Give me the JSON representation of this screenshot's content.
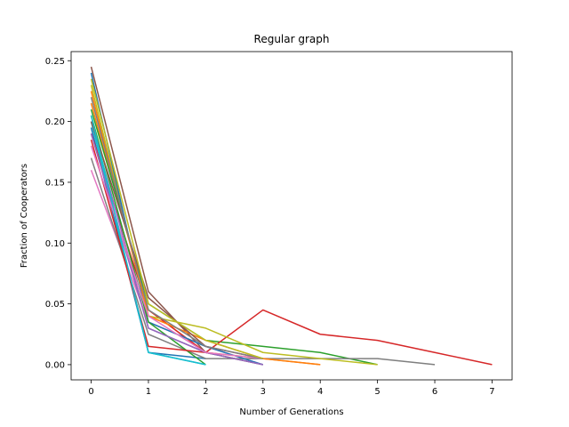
{
  "chart_data": {
    "type": "line",
    "title": "Regular graph",
    "xlabel": "Number of Generations",
    "ylabel": "Fraction of Cooperators",
    "xlim": [
      -0.35,
      7.35
    ],
    "ylim": [
      -0.0125,
      0.2575
    ],
    "xticks": [
      0,
      1,
      2,
      3,
      4,
      5,
      6,
      7
    ],
    "yticks": [
      0.0,
      0.05,
      0.1,
      0.15,
      0.2,
      0.25
    ],
    "ytick_labels": [
      "0.00",
      "0.05",
      "0.10",
      "0.15",
      "0.20",
      "0.25"
    ],
    "grid": false,
    "legend": "none",
    "series": [
      {
        "color": "#1f77b4",
        "x": [
          0,
          1,
          2
        ],
        "y": [
          0.195,
          0.01,
          0.005
        ]
      },
      {
        "color": "#ff7f0e",
        "x": [
          0,
          1,
          2,
          3,
          4
        ],
        "y": [
          0.215,
          0.045,
          0.01,
          0.005,
          0.0
        ]
      },
      {
        "color": "#2ca02c",
        "x": [
          0,
          1,
          2,
          3,
          4,
          5
        ],
        "y": [
          0.21,
          0.05,
          0.02,
          0.015,
          0.01,
          0.0
        ]
      },
      {
        "color": "#d62728",
        "x": [
          0,
          1,
          2,
          3,
          4,
          5,
          6,
          7
        ],
        "y": [
          0.19,
          0.045,
          0.01,
          0.045,
          0.025,
          0.02,
          0.01,
          0.0
        ]
      },
      {
        "color": "#9467bd",
        "x": [
          0,
          1,
          2,
          3
        ],
        "y": [
          0.2,
          0.03,
          0.01,
          0.0
        ]
      },
      {
        "color": "#8c564b",
        "x": [
          0,
          1,
          2,
          3
        ],
        "y": [
          0.245,
          0.06,
          0.01,
          0.0
        ]
      },
      {
        "color": "#e377c2",
        "x": [
          0,
          1,
          2,
          3
        ],
        "y": [
          0.16,
          0.035,
          0.015,
          0.0
        ]
      },
      {
        "color": "#7f7f7f",
        "x": [
          0,
          1,
          2,
          3,
          4,
          5,
          6
        ],
        "y": [
          0.17,
          0.025,
          0.005,
          0.005,
          0.005,
          0.005,
          0.0
        ]
      },
      {
        "color": "#bcbd22",
        "x": [
          0,
          1,
          2,
          3,
          4,
          5
        ],
        "y": [
          0.23,
          0.04,
          0.03,
          0.01,
          0.005,
          0.0
        ]
      },
      {
        "color": "#17becf",
        "x": [
          0,
          1,
          2
        ],
        "y": [
          0.2,
          0.01,
          0.0
        ]
      },
      {
        "color": "#1f77b4",
        "x": [
          0,
          1,
          2,
          3
        ],
        "y": [
          0.24,
          0.035,
          0.015,
          0.0
        ]
      },
      {
        "color": "#ff7f0e",
        "x": [
          0,
          1,
          2,
          3,
          4
        ],
        "y": [
          0.225,
          0.04,
          0.02,
          0.005,
          0.0
        ]
      },
      {
        "color": "#2ca02c",
        "x": [
          0,
          1,
          2
        ],
        "y": [
          0.205,
          0.035,
          0.0
        ]
      },
      {
        "color": "#d62728",
        "x": [
          0,
          1,
          2
        ],
        "y": [
          0.185,
          0.015,
          0.01
        ]
      },
      {
        "color": "#9467bd",
        "x": [
          0,
          1,
          2,
          3
        ],
        "y": [
          0.19,
          0.03,
          0.01,
          0.0
        ]
      },
      {
        "color": "#8c564b",
        "x": [
          0,
          1,
          2,
          3
        ],
        "y": [
          0.2,
          0.055,
          0.015,
          0.005
        ]
      },
      {
        "color": "#e377c2",
        "x": [
          0,
          1,
          2,
          3
        ],
        "y": [
          0.18,
          0.04,
          0.01,
          0.005
        ]
      },
      {
        "color": "#7f7f7f",
        "x": [
          0,
          1,
          2,
          3
        ],
        "y": [
          0.22,
          0.045,
          0.015,
          0.005
        ]
      },
      {
        "color": "#bcbd22",
        "x": [
          0,
          1,
          2,
          3
        ],
        "y": [
          0.235,
          0.05,
          0.02,
          0.005
        ]
      },
      {
        "color": "#17becf",
        "x": [
          0,
          1,
          2
        ],
        "y": [
          0.205,
          0.01,
          0.0
        ]
      }
    ]
  }
}
